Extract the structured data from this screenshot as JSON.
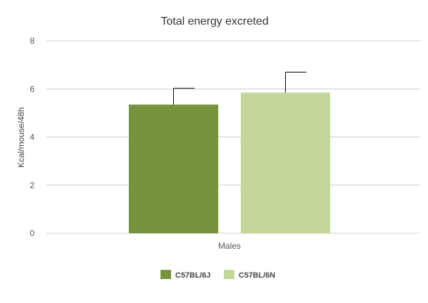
{
  "chart_data": {
    "type": "bar",
    "title": "Total energy excreted",
    "xlabel": "",
    "ylabel": "Kcal/mouse/48h",
    "categories": [
      "Males"
    ],
    "ylim": [
      0,
      8
    ],
    "yticks": [
      0,
      2,
      4,
      6,
      8
    ],
    "grid": true,
    "legend_position": "bottom",
    "series": [
      {
        "name": "C57BL/6J",
        "values": [
          5.35
        ],
        "error": [
          0.68
        ],
        "color": "#77933c"
      },
      {
        "name": "C57BL/6N",
        "values": [
          5.85
        ],
        "error": [
          0.85
        ],
        "color": "#c4d79b"
      }
    ]
  }
}
